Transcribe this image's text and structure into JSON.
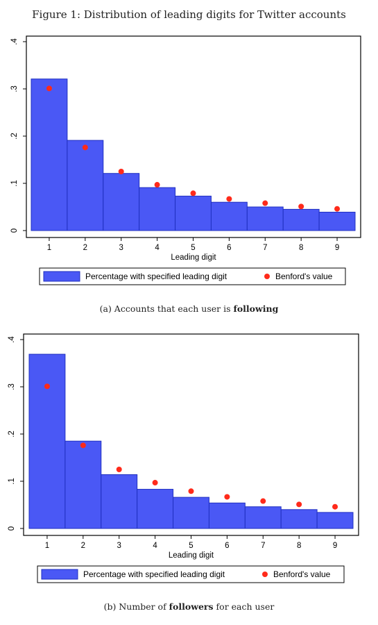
{
  "figure_title": "Figure 1: Distribution of leading digits for Twitter accounts",
  "panels": [
    {
      "caption_prefix": "(a) Accounts that each user is ",
      "caption_bold": "following",
      "caption_suffix": ""
    },
    {
      "caption_prefix": "(b) Number of ",
      "caption_bold": "followers",
      "caption_suffix": " for each user"
    }
  ],
  "colors": {
    "bar_fill": "#4a58f5",
    "bar_stroke": "#2030c0",
    "benford_dot": "#ff2a1a"
  },
  "chart_data": [
    {
      "type": "bar",
      "categories": [
        "1",
        "2",
        "3",
        "4",
        "5",
        "6",
        "7",
        "8",
        "9"
      ],
      "series": [
        {
          "name": "Percentage with specified leading digit",
          "kind": "bar",
          "values": [
            0.321,
            0.191,
            0.121,
            0.091,
            0.073,
            0.06,
            0.05,
            0.045,
            0.039
          ]
        },
        {
          "name": "Benford's value",
          "kind": "scatter",
          "values": [
            0.301,
            0.176,
            0.125,
            0.097,
            0.079,
            0.067,
            0.058,
            0.051,
            0.046
          ]
        }
      ],
      "xlabel": "Leading digit",
      "ylabel": "",
      "ylim": [
        0,
        0.4
      ],
      "yticks": [
        0,
        0.1,
        0.2,
        0.3,
        0.4
      ],
      "ytick_labels": [
        "0",
        ".1",
        ".2",
        ".3",
        ".4"
      ],
      "legend_position": "bottom"
    },
    {
      "type": "bar",
      "categories": [
        "1",
        "2",
        "3",
        "4",
        "5",
        "6",
        "7",
        "8",
        "9"
      ],
      "series": [
        {
          "name": "Percentage with specified leading digit",
          "kind": "bar",
          "values": [
            0.369,
            0.185,
            0.114,
            0.083,
            0.066,
            0.054,
            0.046,
            0.04,
            0.034
          ]
        },
        {
          "name": "Benford's value",
          "kind": "scatter",
          "values": [
            0.301,
            0.176,
            0.125,
            0.097,
            0.079,
            0.067,
            0.058,
            0.051,
            0.046
          ]
        }
      ],
      "xlabel": "Leading digit",
      "ylabel": "",
      "ylim": [
        0,
        0.4
      ],
      "yticks": [
        0,
        0.1,
        0.2,
        0.3,
        0.4
      ],
      "ytick_labels": [
        "0",
        ".1",
        ".2",
        ".3",
        ".4"
      ],
      "legend_position": "bottom"
    }
  ]
}
